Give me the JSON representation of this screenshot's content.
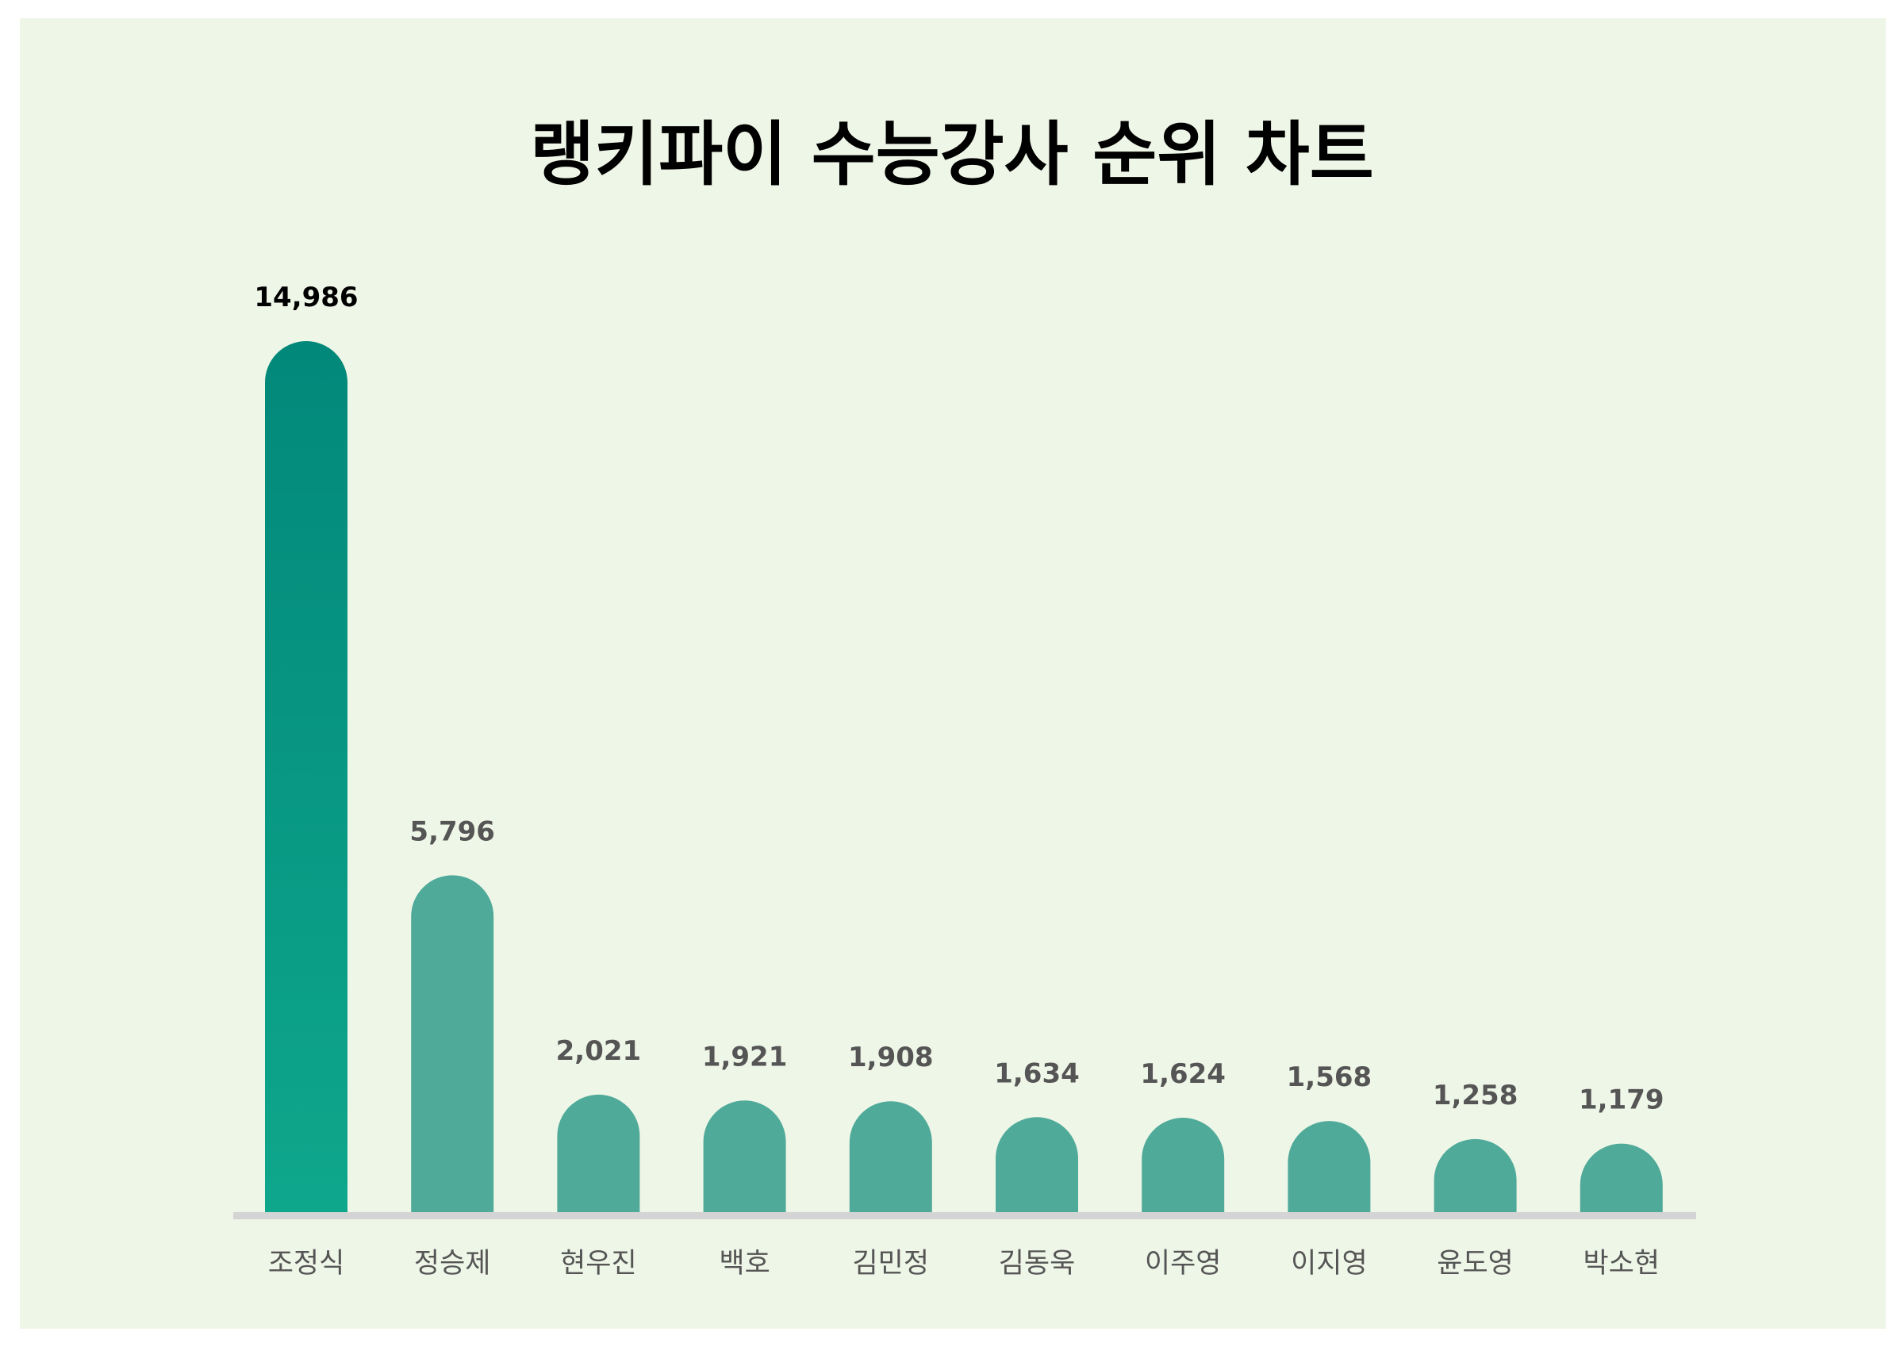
{
  "chart_data": {
    "type": "bar",
    "title": "랭키파이 수능강사 순위 차트",
    "xlabel": "",
    "ylabel": "",
    "categories": [
      "조정식",
      "정승제",
      "현우진",
      "백호",
      "김민정",
      "김동욱",
      "이주영",
      "이지영",
      "윤도영",
      "박소현"
    ],
    "values": [
      14986,
      5796,
      2021,
      1921,
      1908,
      1634,
      1624,
      1568,
      1258,
      1179
    ],
    "value_labels": [
      "14,986",
      "5,796",
      "2,021",
      "1,921",
      "1,908",
      "1,634",
      "1,624",
      "1,568",
      "1,258",
      "1,179"
    ],
    "ylim": [
      0,
      14986
    ],
    "grid": false,
    "legend": "none",
    "colors": {
      "background": "#eef6e7",
      "top_bar_gradient_top": "#02887a",
      "top_bar_gradient_bottom": "#0ea78c",
      "bar": "#50aa99",
      "baseline": "#d4d4d4",
      "top_value_label": "#000000",
      "value_label": "#555555",
      "category_label": "#555555"
    }
  }
}
